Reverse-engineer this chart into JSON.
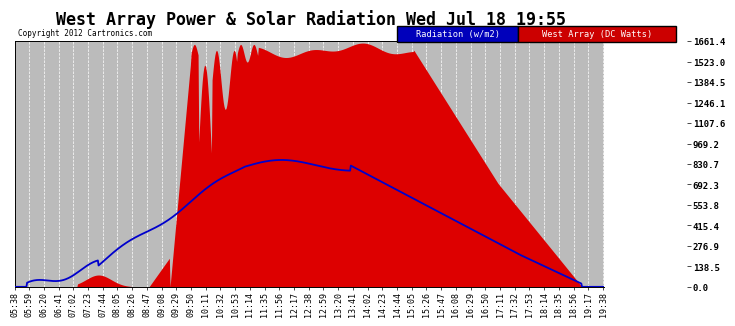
{
  "title": "West Array Power & Solar Radiation Wed Jul 18 19:55",
  "copyright": "Copyright 2012 Cartronics.com",
  "legend_radiation": "Radiation (w/m2)",
  "legend_west": "West Array (DC Watts)",
  "legend_radiation_bg": "#0000bb",
  "legend_west_bg": "#cc0000",
  "background_color": "#ffffff",
  "plot_bg": "#bbbbbb",
  "grid_color": "#ffffff",
  "ymax": 1661.4,
  "ymin": 0.0,
  "yticks": [
    0.0,
    138.5,
    276.9,
    415.4,
    553.8,
    692.3,
    830.7,
    969.2,
    1107.6,
    1246.1,
    1384.5,
    1523.0,
    1661.4
  ],
  "red_fill_color": "#dd0000",
  "blue_line_color": "#0000cc",
  "title_fontsize": 12,
  "tick_fontsize": 6.0
}
